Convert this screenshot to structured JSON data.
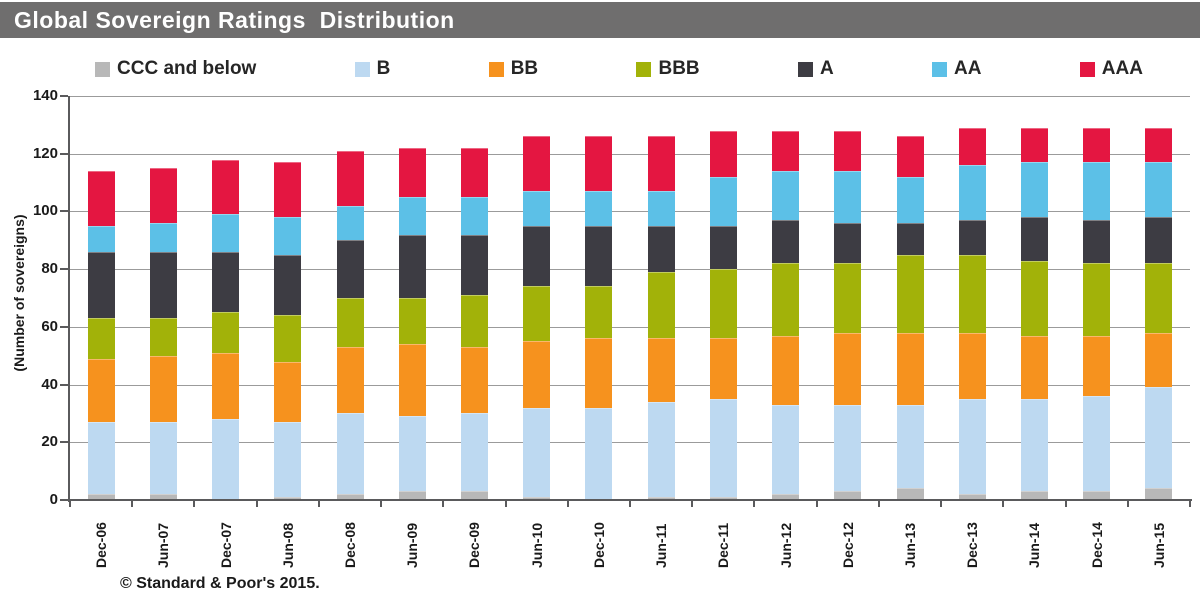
{
  "title": "Global Sovereign Ratings  Distribution",
  "footer": "© Standard & Poor's 2015.",
  "colors": {
    "title_bar_bg": "#6f6e6e",
    "title_text": "#ffffff",
    "gridline": "#9b9b9b",
    "axis": "#5a5a5c",
    "ccc": "#b8b8b8",
    "b": "#bdd9f1",
    "bb": "#f6921e",
    "bbb": "#a2b209",
    "a": "#3d3c43",
    "aa": "#5cc0e7",
    "aaa": "#e41641"
  },
  "chart_data": {
    "type": "bar",
    "stacked": true,
    "title": "Global Sovereign Ratings Distribution",
    "ylabel": "(Number of sovereigns)",
    "ylim": [
      0,
      140
    ],
    "yticks": [
      0,
      20,
      40,
      60,
      80,
      100,
      120,
      140
    ],
    "grid": true,
    "legend_position": "top",
    "categories": [
      "Dec-06",
      "Jun-07",
      "Dec-07",
      "Jun-08",
      "Dec-08",
      "Jun-09",
      "Dec-09",
      "Jun-10",
      "Dec-10",
      "Jun-11",
      "Dec-11",
      "Jun-12",
      "Dec-12",
      "Jun-13",
      "Dec-13",
      "Jun-14",
      "Dec-14",
      "Jun-15"
    ],
    "series": [
      {
        "name": "CCC and below",
        "color": "#b8b8b8",
        "values": [
          2,
          2,
          0,
          1,
          2,
          3,
          3,
          1,
          0,
          1,
          1,
          2,
          3,
          4,
          2,
          3,
          3,
          4
        ]
      },
      {
        "name": "B",
        "color": "#bdd9f1",
        "values": [
          25,
          25,
          28,
          26,
          28,
          26,
          27,
          31,
          32,
          33,
          34,
          31,
          30,
          29,
          33,
          32,
          33,
          35
        ]
      },
      {
        "name": "BB",
        "color": "#f6921e",
        "values": [
          22,
          23,
          23,
          21,
          23,
          25,
          23,
          23,
          24,
          22,
          21,
          24,
          25,
          25,
          23,
          22,
          21,
          19
        ]
      },
      {
        "name": "BBB",
        "color": "#a2b209",
        "values": [
          14,
          13,
          14,
          16,
          17,
          16,
          18,
          19,
          18,
          23,
          24,
          25,
          24,
          27,
          27,
          26,
          25,
          24
        ]
      },
      {
        "name": "A",
        "color": "#3d3c43",
        "values": [
          23,
          23,
          21,
          21,
          20,
          22,
          21,
          21,
          21,
          16,
          15,
          15,
          14,
          11,
          12,
          15,
          15,
          16
        ]
      },
      {
        "name": "AA",
        "color": "#5cc0e7",
        "values": [
          9,
          10,
          13,
          13,
          12,
          13,
          13,
          12,
          12,
          12,
          17,
          17,
          18,
          16,
          19,
          19,
          20,
          19
        ]
      },
      {
        "name": "AAA",
        "color": "#e41641",
        "values": [
          19,
          19,
          19,
          19,
          19,
          17,
          17,
          19,
          19,
          19,
          16,
          14,
          14,
          14,
          13,
          12,
          12,
          12
        ]
      }
    ],
    "totals": [
      114,
      115,
      118,
      117,
      121,
      122,
      122,
      126,
      126,
      126,
      128,
      128,
      128,
      126,
      129,
      129,
      129,
      129
    ]
  }
}
